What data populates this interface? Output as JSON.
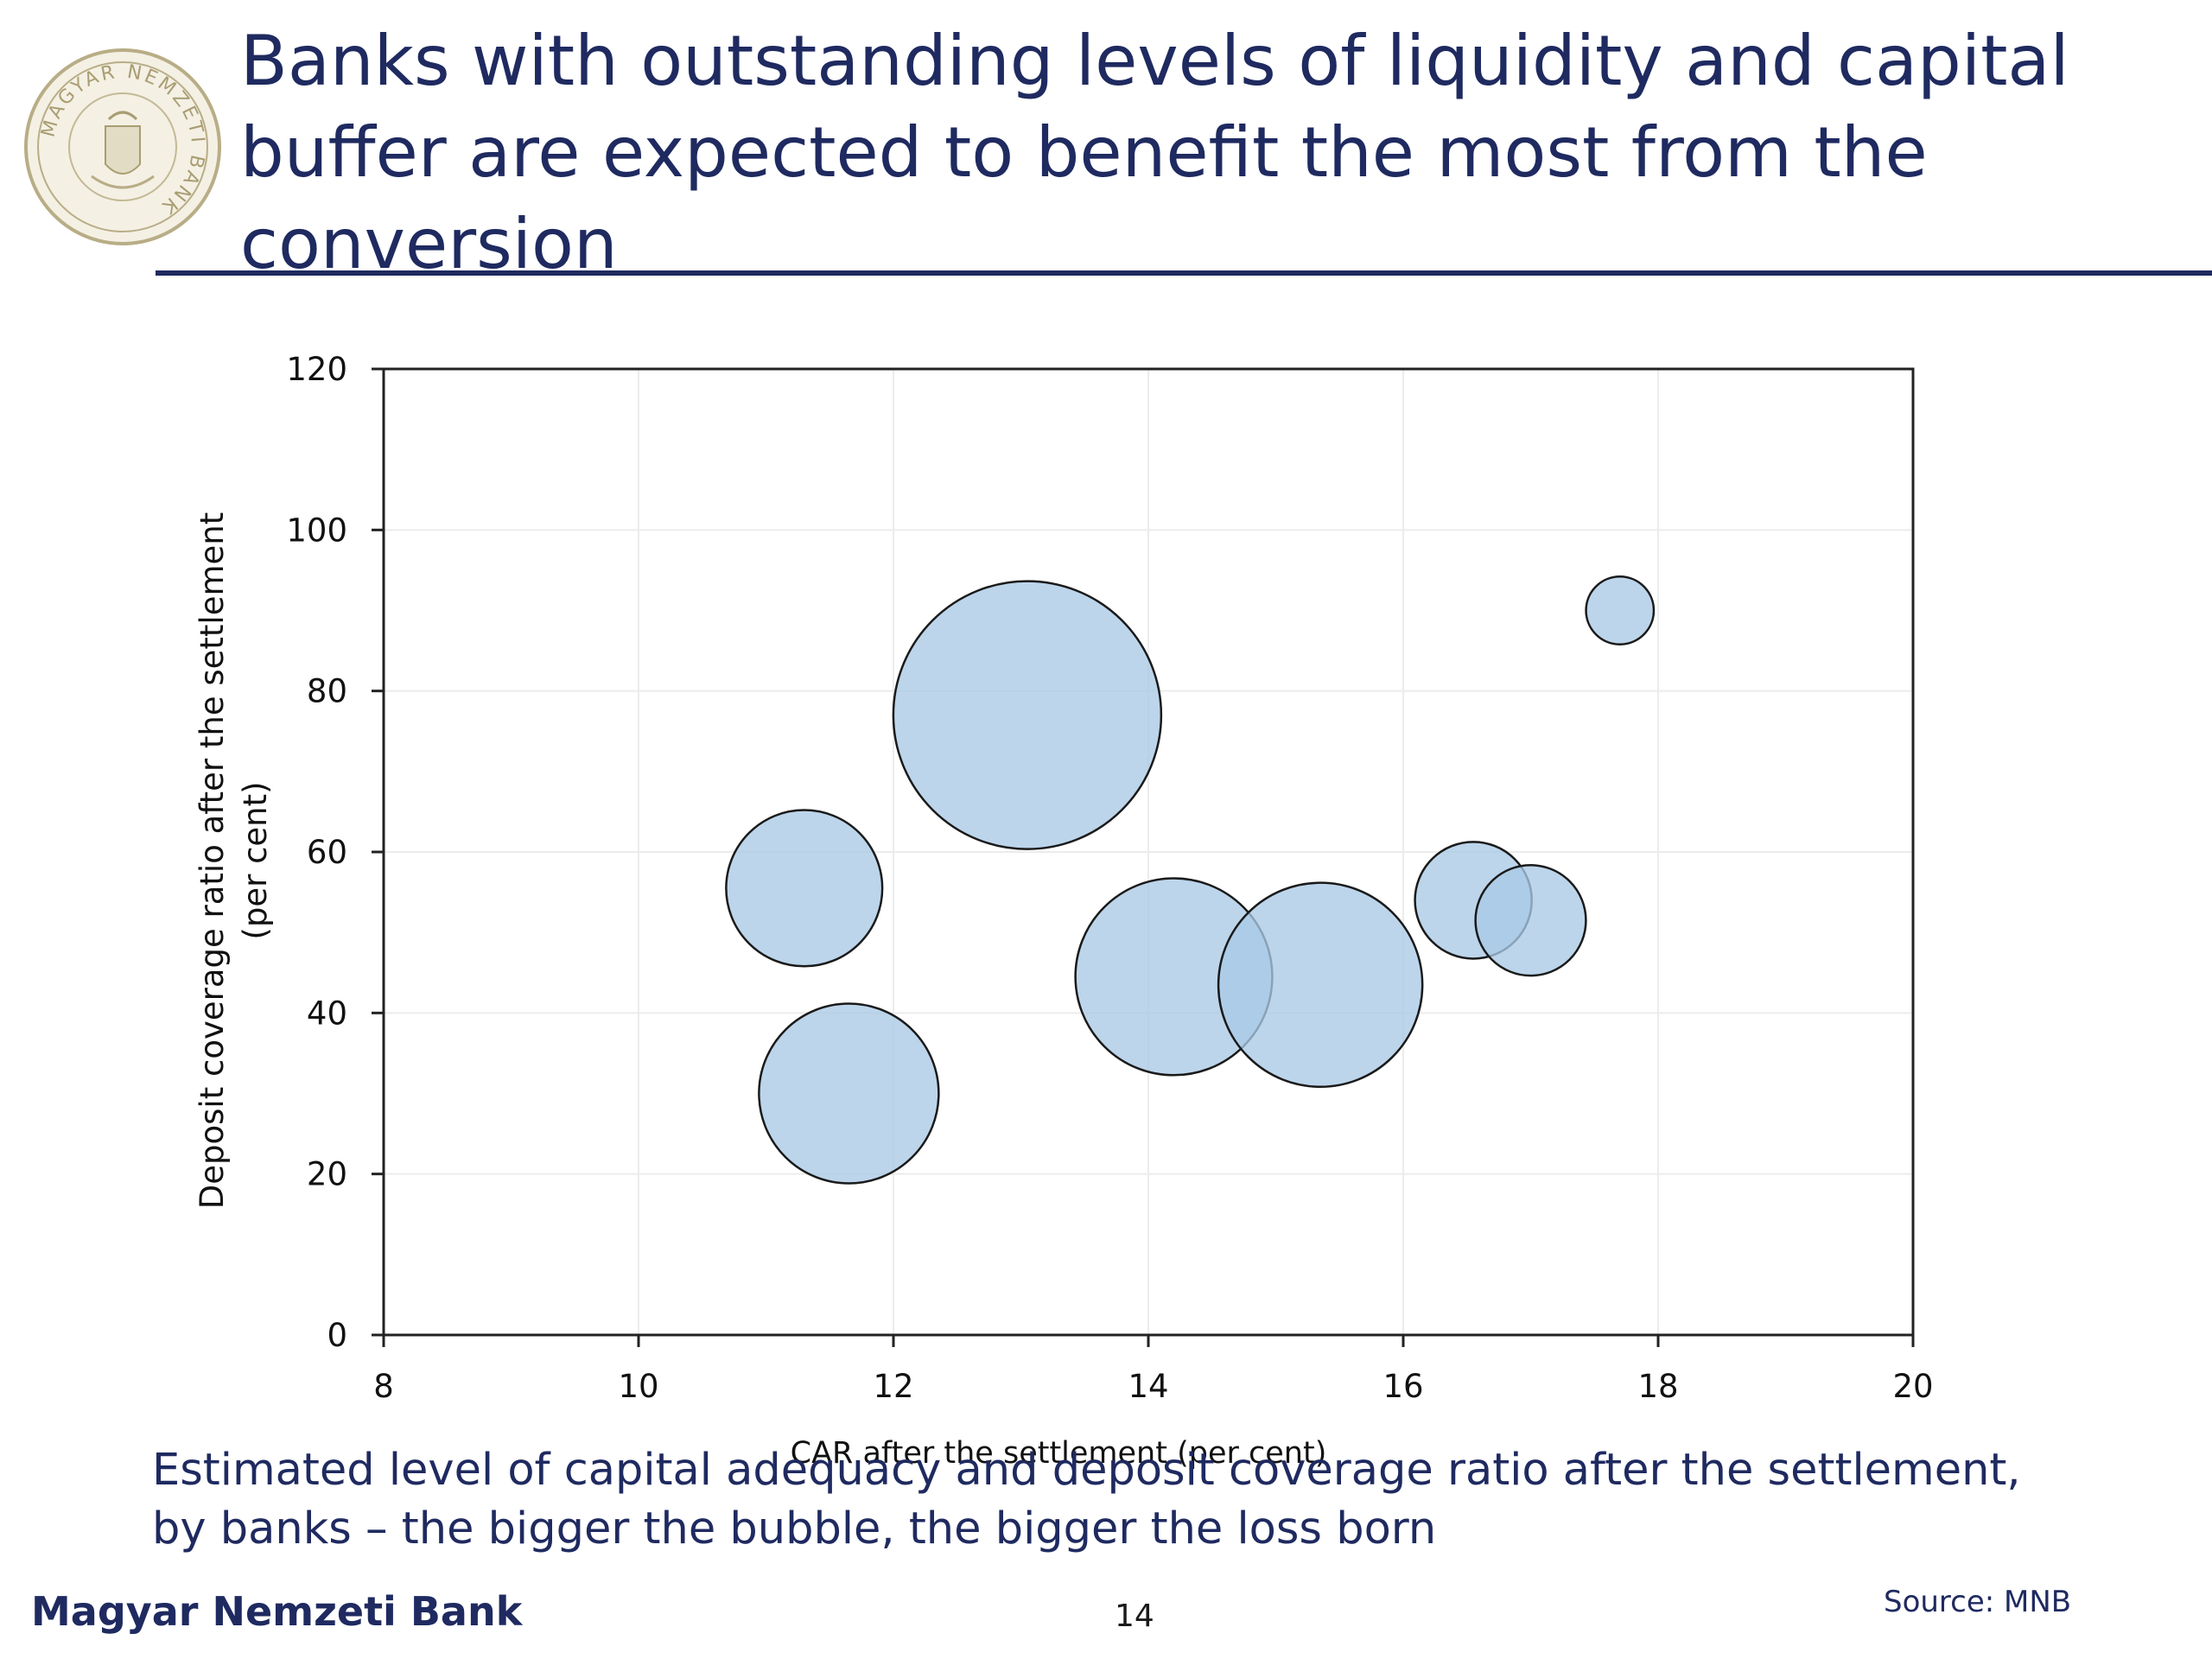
{
  "slide": {
    "title_lines": [
      "Banks with outstanding levels of liquidity and capital",
      "buffer are expected to benefit the most from the",
      "conversion"
    ],
    "caption_lines": [
      "Estimated level of capital adequacy and deposit coverage ratio after the settlement,",
      "by banks – the bigger the bubble, the bigger the loss born"
    ],
    "footer_bank": "Magyar Nemzeti Bank",
    "page_number": "14",
    "source": "Source: MNB",
    "logo_text": "MAGYAR NEMZETI BANK"
  },
  "colors": {
    "title": "#1f2a60",
    "bubble_fill": "#a9c9e6",
    "bubble_stroke": "#1a1a1a",
    "axis": "#222222",
    "seal": "#b8ad86"
  },
  "chart_data": {
    "type": "bubble",
    "title": "",
    "xlabel": "CAR after the settlement (per cent)",
    "ylabel_lines": [
      "Deposit coverage ratio after the settlement",
      "(per cent)"
    ],
    "xlim": [
      8,
      20
    ],
    "ylim": [
      0,
      120
    ],
    "xticks": [
      8,
      10,
      12,
      14,
      16,
      18,
      20
    ],
    "yticks": [
      0,
      20,
      40,
      60,
      80,
      100,
      120
    ],
    "grid": true,
    "legend": "none",
    "points": [
      {
        "x": 11.3,
        "y": 55.5,
        "size": 0.34
      },
      {
        "x": 11.65,
        "y": 30.0,
        "size": 0.45
      },
      {
        "x": 13.05,
        "y": 77.0,
        "size": 1.0
      },
      {
        "x": 14.2,
        "y": 44.5,
        "size": 0.54
      },
      {
        "x": 15.35,
        "y": 43.5,
        "size": 0.58
      },
      {
        "x": 16.55,
        "y": 54.0,
        "size": 0.19
      },
      {
        "x": 17.0,
        "y": 51.5,
        "size": 0.17
      },
      {
        "x": 17.7,
        "y": 90.0,
        "size": 0.064
      }
    ]
  }
}
